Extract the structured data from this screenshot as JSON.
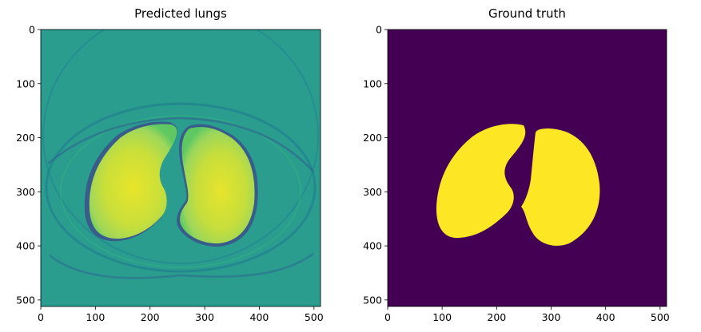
{
  "figure": {
    "panels": [
      {
        "title": "Predicted lungs",
        "colormap": "viridis",
        "xticks": [
          "0",
          "100",
          "200",
          "300",
          "400",
          "500"
        ],
        "yticks": [
          "0",
          "100",
          "200",
          "300",
          "400",
          "500"
        ],
        "xlim": [
          0,
          512
        ],
        "ylim": [
          512,
          0
        ]
      },
      {
        "title": "Ground truth",
        "colormap": "viridis",
        "xticks": [
          "0",
          "100",
          "200",
          "300",
          "400",
          "500"
        ],
        "yticks": [
          "0",
          "100",
          "200",
          "300",
          "400",
          "500"
        ],
        "xlim": [
          0,
          512
        ],
        "ylim": [
          512,
          0
        ]
      }
    ]
  },
  "colors": {
    "viridis_low": "#440154",
    "viridis_mid": "#21918c",
    "viridis_mid_light": "#2a9d8f",
    "viridis_high": "#fde725",
    "viridis_yellowgreen": "#b5de2b"
  }
}
